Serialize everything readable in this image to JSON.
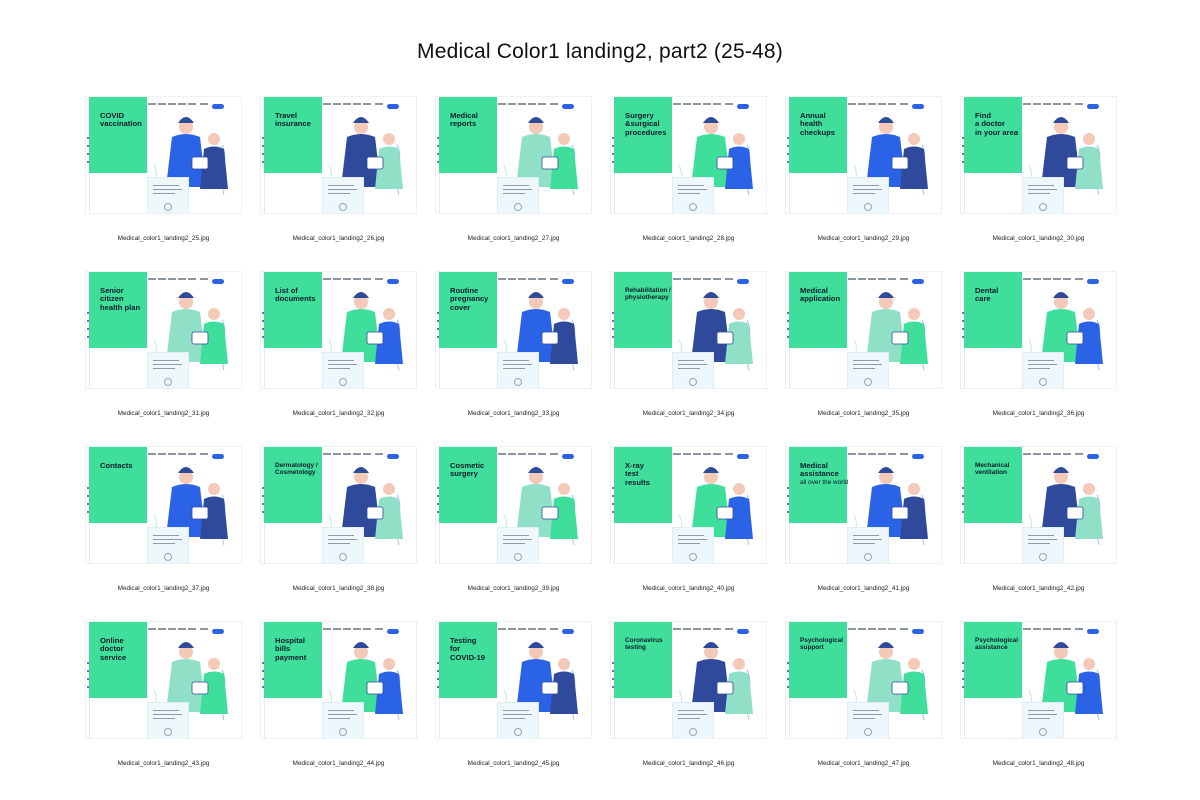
{
  "page_title": "Medical Color1 landing2, part2 (25-48)",
  "colors": {
    "accent_green": "#3fdf9b",
    "accent_blue": "#2b63e6",
    "dark_blue": "#2f4a9a",
    "figure_light": "#8fe0c6",
    "skin": "#f4c9b8"
  },
  "thumbnails": [
    {
      "heading": "COVID\nvaccination",
      "caption": "Medical_color1_landing2_25.jpg"
    },
    {
      "heading": "Travel\ninsurance",
      "caption": "Medical_color1_landing2_26.jpg"
    },
    {
      "heading": "Medical\nreports",
      "caption": "Medical_color1_landing2_27.jpg"
    },
    {
      "heading": "Surgery\n&surgical\nprocedures",
      "caption": "Medical_color1_landing2_28.jpg"
    },
    {
      "heading": "Annual\nhealth\ncheckups",
      "caption": "Medical_color1_landing2_29.jpg"
    },
    {
      "heading": "Find\na doctor\nin your area",
      "caption": "Medical_color1_landing2_30.jpg"
    },
    {
      "heading": "Senior\ncitizen\nhealth plan",
      "caption": "Medical_color1_landing2_31.jpg"
    },
    {
      "heading": "List of\ndocuments",
      "caption": "Medical_color1_landing2_32.jpg"
    },
    {
      "heading": "Routine\npregnancy\ncover",
      "caption": "Medical_color1_landing2_33.jpg"
    },
    {
      "heading": "Rehabilitation /\nphysiotherapy",
      "caption": "Medical_color1_landing2_34.jpg",
      "small": true
    },
    {
      "heading": "Medical\napplication",
      "caption": "Medical_color1_landing2_35.jpg"
    },
    {
      "heading": "Dental\ncare",
      "caption": "Medical_color1_landing2_36.jpg"
    },
    {
      "heading": "Contacts",
      "caption": "Medical_color1_landing2_37.jpg"
    },
    {
      "heading": "Dermatology /\nCosmetology",
      "caption": "Medical_color1_landing2_38.jpg",
      "small": true
    },
    {
      "heading": "Cosmetic\nsurgery",
      "caption": "Medical_color1_landing2_39.jpg"
    },
    {
      "heading": "X-ray\ntest\nresults",
      "caption": "Medical_color1_landing2_40.jpg"
    },
    {
      "heading": "Medical\nassistance",
      "caption": "Medical_color1_landing2_41.jpg",
      "subheading": "all over the world"
    },
    {
      "heading": "Mechanical\nventilation",
      "caption": "Medical_color1_landing2_42.jpg",
      "small": true
    },
    {
      "heading": "Online\ndoctor\nservice",
      "caption": "Medical_color1_landing2_43.jpg"
    },
    {
      "heading": "Hospital\nbills\npayment",
      "caption": "Medical_color1_landing2_44.jpg"
    },
    {
      "heading": "Testing\nfor\nCOVID-19",
      "caption": "Medical_color1_landing2_45.jpg"
    },
    {
      "heading": "Coronavirus\ntesting",
      "caption": "Medical_color1_landing2_46.jpg"
    },
    {
      "heading": "Psychological\nsupport",
      "caption": "Medical_color1_landing2_47.jpg"
    },
    {
      "heading": "Psychological\nassistance",
      "caption": "Medical_color1_landing2_48.jpg",
      "small": true
    }
  ]
}
